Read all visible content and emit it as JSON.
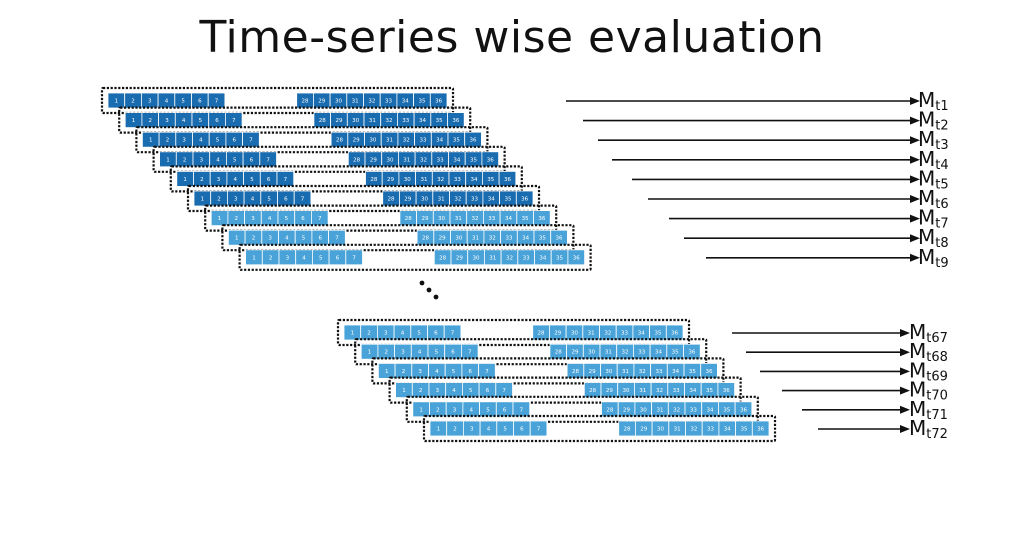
{
  "title": "Time-series wise evaluation",
  "cells_left": [
    "1",
    "2",
    "3",
    "4",
    "5",
    "6",
    "7"
  ],
  "cells_right": [
    "28",
    "29",
    "30",
    "31",
    "32",
    "33",
    "34",
    "35",
    "36"
  ],
  "ellipsis": "...",
  "colors": {
    "dark_blue": "#1a6cb0",
    "light_blue": "#4aa3d8",
    "cell_border": "#ffffff",
    "window_border": "#111111",
    "arrow": "#111111"
  },
  "top_group": [
    {
      "letter": "M",
      "sub": "t1",
      "shade": "dark"
    },
    {
      "letter": "M",
      "sub": "t2",
      "shade": "dark"
    },
    {
      "letter": "M",
      "sub": "t3",
      "shade": "dark"
    },
    {
      "letter": "M",
      "sub": "t4",
      "shade": "dark"
    },
    {
      "letter": "M",
      "sub": "t5",
      "shade": "dark"
    },
    {
      "letter": "M",
      "sub": "t6",
      "shade": "dark"
    },
    {
      "letter": "M",
      "sub": "t7",
      "shade": "light"
    },
    {
      "letter": "M",
      "sub": "t8",
      "shade": "light"
    },
    {
      "letter": "M",
      "sub": "t9",
      "shade": "light"
    }
  ],
  "bottom_group": [
    {
      "letter": "M",
      "sub": "t67",
      "shade": "light"
    },
    {
      "letter": "M",
      "sub": "t68",
      "shade": "light"
    },
    {
      "letter": "M",
      "sub": "t69",
      "shade": "light"
    },
    {
      "letter": "M",
      "sub": "t70",
      "shade": "light"
    },
    {
      "letter": "M",
      "sub": "t71",
      "shade": "light"
    },
    {
      "letter": "M",
      "sub": "t72",
      "shade": "light"
    }
  ]
}
